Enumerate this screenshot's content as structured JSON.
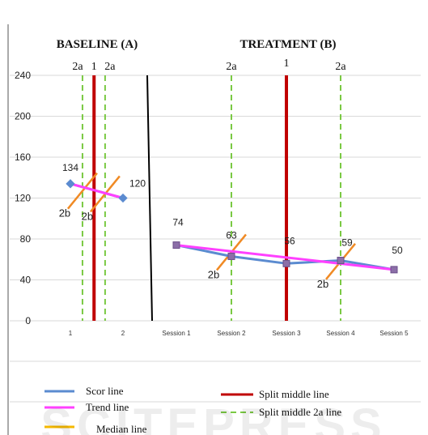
{
  "chart_data": {
    "type": "line",
    "phases": [
      {
        "title": "BASELINE (A)",
        "categories": [
          "1",
          "2"
        ]
      },
      {
        "title": "TREATMENT (B)",
        "categories": [
          "Session 1",
          "Session 2",
          "Session 3",
          "Session 4",
          "Session 5"
        ]
      }
    ],
    "categories": [
      "1",
      "2",
      "Session 1",
      "Session 2",
      "Session 3",
      "Session 4",
      "Session 5"
    ],
    "ylim": [
      0,
      240
    ],
    "yticks": [
      0,
      40,
      80,
      120,
      160,
      200,
      240
    ],
    "grid": true,
    "series": [
      {
        "name": "Scor line",
        "color": "#5b8bd0",
        "segments": [
          {
            "x": [
              0,
              1
            ],
            "y": [
              134,
              120
            ],
            "labels": [
              "134",
              "120"
            ]
          },
          {
            "x": [
              2,
              3,
              4,
              5,
              6
            ],
            "y": [
              74,
              63,
              56,
              59,
              50
            ],
            "labels": [
              "74",
              "63",
              "56",
              "59",
              "50"
            ]
          }
        ]
      },
      {
        "name": "Trend line",
        "color": "#ff40ff",
        "segments": [
          {
            "x": [
              0,
              1
            ],
            "y": [
              134,
              120
            ]
          },
          {
            "x": [
              2,
              6
            ],
            "y": [
              74,
              50
            ]
          }
        ]
      },
      {
        "name": "Median line",
        "color": "#f5b800",
        "segments": []
      }
    ],
    "phase_change_after": 1,
    "split_lines": [
      {
        "label": "1",
        "x": 0.45,
        "type": "middle"
      },
      {
        "label": "2a",
        "x": 0.23,
        "type": "middle-2a"
      },
      {
        "label": "2a",
        "x": 0.66,
        "type": "middle-2a"
      },
      {
        "label": "1",
        "x": 4.0,
        "type": "middle"
      },
      {
        "label": "2a",
        "x": 3.0,
        "type": "middle-2a"
      },
      {
        "label": "2a",
        "x": 5.0,
        "type": "middle-2a"
      }
    ],
    "split_2b": [
      {
        "label": "2b",
        "x": 0.23,
        "y": 127
      },
      {
        "label": "2b",
        "x": 0.66,
        "y": 124
      },
      {
        "label": "2b",
        "x": 3.0,
        "y": 67
      },
      {
        "label": "2b",
        "x": 5.0,
        "y": 58
      }
    ],
    "legend": [
      {
        "label": "Scor line",
        "color": "#5b8bd0",
        "style": "solid"
      },
      {
        "label": "Trend line",
        "color": "#ff40ff",
        "style": "solid"
      },
      {
        "label": "Median line",
        "color": "#f5b800",
        "style": "solid"
      },
      {
        "label": "Split middle line",
        "color": "#c00000",
        "style": "solid"
      },
      {
        "label": "Split middle 2a line",
        "color": "#7ac943",
        "style": "dashed"
      }
    ],
    "colors": {
      "split_middle": "#c00000",
      "split_2a": "#7ac943",
      "split_2b": "#f08a24",
      "phase_divider": "#000000",
      "grid": "#d9d9d9"
    },
    "watermark": "SCITEPRESS"
  }
}
